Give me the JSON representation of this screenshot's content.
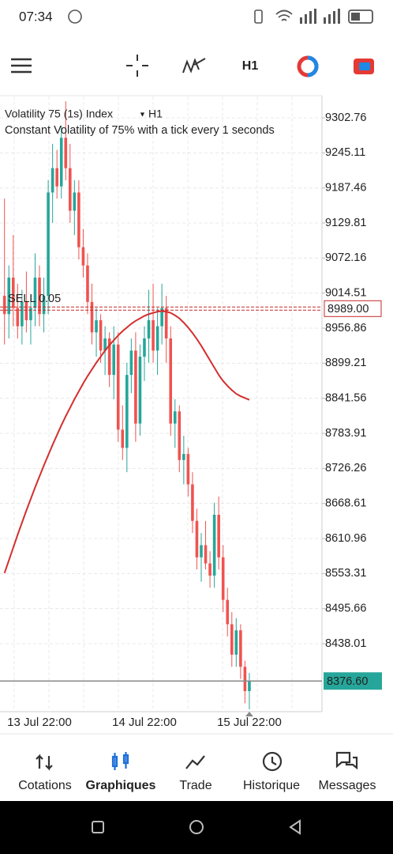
{
  "status_bar": {
    "time": "07:34"
  },
  "toolbar": {
    "timeframe": "H1"
  },
  "chart_data": {
    "type": "candlestick",
    "title": "Volatility 75 (1s) Index",
    "timeframe": "H1",
    "subtitle": "Constant Volatility of 75% with a tick every 1 seconds",
    "categories": [
      null,
      null,
      null,
      null,
      null,
      null,
      null,
      null,
      "13 Jul 22:00",
      null,
      null,
      null,
      null,
      null,
      null,
      null,
      null,
      null,
      null,
      null,
      null,
      null,
      null,
      null,
      null,
      null,
      null,
      null,
      null,
      null,
      null,
      null,
      "14 Jul 22:00",
      null,
      null,
      null,
      null,
      null,
      null,
      null,
      null,
      null,
      null,
      null,
      null,
      null,
      null,
      null,
      null,
      null,
      null,
      null,
      null,
      null,
      null,
      null,
      "15 Jul 22:00"
    ],
    "candles": [
      [
        9010,
        9170,
        8930,
        8980
      ],
      [
        8980,
        9060,
        8940,
        9040
      ],
      [
        9040,
        9110,
        8960,
        8990
      ],
      [
        8990,
        9030,
        8940,
        8960
      ],
      [
        8960,
        9020,
        8930,
        9000
      ],
      [
        9000,
        9050,
        8950,
        8970
      ],
      [
        8970,
        9010,
        8930,
        8990
      ],
      [
        8990,
        9080,
        8960,
        9040
      ],
      [
        9040,
        9060,
        8960,
        8980
      ],
      [
        8980,
        9040,
        8950,
        9010
      ],
      [
        9010,
        9200,
        8980,
        9180
      ],
      [
        9180,
        9260,
        9130,
        9220
      ],
      [
        9220,
        9250,
        9170,
        9190
      ],
      [
        9190,
        9290,
        9170,
        9270
      ],
      [
        9270,
        9330,
        9200,
        9220
      ],
      [
        9220,
        9260,
        9130,
        9150
      ],
      [
        9150,
        9200,
        9110,
        9180
      ],
      [
        9180,
        9200,
        9070,
        9090
      ],
      [
        9090,
        9120,
        9040,
        9060
      ],
      [
        9060,
        9080,
        8980,
        9000
      ],
      [
        9000,
        9030,
        8930,
        8950
      ],
      [
        8950,
        8990,
        8910,
        8970
      ],
      [
        8970,
        8980,
        8900,
        8920
      ],
      [
        8920,
        8960,
        8880,
        8940
      ],
      [
        8940,
        8950,
        8860,
        8880
      ],
      [
        8880,
        8960,
        8840,
        8930
      ],
      [
        8930,
        8950,
        8770,
        8790
      ],
      [
        8790,
        8830,
        8740,
        8760
      ],
      [
        8760,
        8900,
        8720,
        8880
      ],
      [
        8880,
        8940,
        8850,
        8920
      ],
      [
        8920,
        8950,
        8770,
        8800
      ],
      [
        8800,
        8930,
        8780,
        8910
      ],
      [
        8910,
        8960,
        8870,
        8940
      ],
      [
        8940,
        9020,
        8900,
        8970
      ],
      [
        8970,
        9030,
        8900,
        8920
      ],
      [
        8920,
        8990,
        8880,
        8960
      ],
      [
        8960,
        9030,
        8930,
        8990
      ],
      [
        8990,
        9010,
        8900,
        8940
      ],
      [
        8940,
        8960,
        8780,
        8800
      ],
      [
        8800,
        8840,
        8760,
        8820
      ],
      [
        8820,
        8830,
        8720,
        8740
      ],
      [
        8740,
        8780,
        8700,
        8750
      ],
      [
        8750,
        8760,
        8680,
        8700
      ],
      [
        8700,
        8720,
        8620,
        8640
      ],
      [
        8640,
        8660,
        8560,
        8580
      ],
      [
        8580,
        8620,
        8540,
        8600
      ],
      [
        8600,
        8640,
        8560,
        8570
      ],
      [
        8570,
        8590,
        8530,
        8550
      ],
      [
        8550,
        8670,
        8530,
        8650
      ],
      [
        8650,
        8680,
        8560,
        8580
      ],
      [
        8580,
        8600,
        8490,
        8510
      ],
      [
        8510,
        8530,
        8450,
        8470
      ],
      [
        8470,
        8490,
        8400,
        8420
      ],
      [
        8420,
        8480,
        8400,
        8460
      ],
      [
        8460,
        8470,
        8380,
        8400
      ],
      [
        8400,
        8410,
        8340,
        8360
      ],
      [
        8360,
        8390,
        8330,
        8376.6
      ]
    ],
    "up_color": "#26a69a",
    "down_color": "#ef5350",
    "ma": {
      "color": "#d32f2f",
      "values": [
        8554,
        8575,
        8596,
        8617,
        8637,
        8657,
        8676,
        8695,
        8713,
        8731,
        8748,
        8765,
        8781,
        8797,
        8812,
        8826,
        8840,
        8853,
        8866,
        8878,
        8889,
        8900,
        8910,
        8920,
        8929,
        8937,
        8945,
        8952,
        8958,
        8964,
        8969,
        8973,
        8977,
        8980,
        8982,
        8984,
        8985,
        8984,
        8982,
        8978,
        8973,
        8966,
        8958,
        8949,
        8939,
        8928,
        8916,
        8904,
        8892,
        8880,
        8870,
        8862,
        8855,
        8849,
        8845,
        8842,
        8839
      ]
    },
    "ylim": [
      8326.2,
      9337.9
    ],
    "yticks": [
      9302.76,
      9245.11,
      9187.46,
      9129.81,
      9072.16,
      9014.51,
      8956.86,
      8899.21,
      8841.56,
      8783.91,
      8726.26,
      8668.61,
      8610.96,
      8553.31,
      8495.66,
      8438.01
    ],
    "grid": true,
    "order": {
      "label": "SELL 0.05",
      "price": 8989,
      "price_label": "8989.00",
      "color": "#c62828"
    },
    "last_price": {
      "value": 8376.6,
      "label": "8376.60",
      "color": "#26a69a"
    }
  },
  "bottom_nav": {
    "items": [
      "Cotations",
      "Graphiques",
      "Trade",
      "Historique",
      "Messages"
    ],
    "active": 1
  }
}
